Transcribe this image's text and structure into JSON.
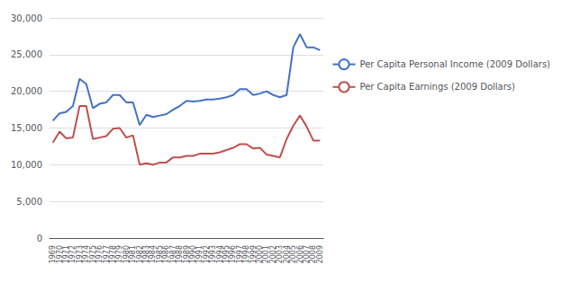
{
  "chart_data": {
    "type": "line",
    "categories": [
      "1969",
      "1970",
      "1971",
      "1972",
      "1973",
      "1974",
      "1975",
      "1976",
      "1977",
      "1978",
      "1979",
      "1980",
      "1981",
      "1982",
      "1983",
      "1984",
      "1985",
      "1986",
      "1987",
      "1988",
      "1989",
      "1990",
      "1991",
      "1992",
      "1993",
      "1994",
      "1995",
      "1996",
      "1997",
      "1998",
      "1999",
      "2000",
      "2001",
      "2002",
      "2003",
      "2004",
      "2005",
      "2006",
      "2007",
      "2008",
      "2009"
    ],
    "series": [
      {
        "name": "Per Capita Personal Income (2009 Dollars)",
        "color": "#4472c4",
        "values": [
          16000,
          17000,
          17200,
          18000,
          21700,
          21000,
          17700,
          18300,
          18500,
          19500,
          19500,
          18500,
          18500,
          15400,
          16800,
          16500,
          16700,
          16900,
          17500,
          18000,
          18700,
          18600,
          18700,
          18900,
          18900,
          19000,
          19200,
          19500,
          20300,
          20300,
          19500,
          19700,
          20000,
          19500,
          19200,
          19500,
          26000,
          27800,
          26000,
          26000,
          25600
        ]
      },
      {
        "name": "Per Capita Earnings (2009 Dollars)",
        "color": "#c0504d",
        "values": [
          13000,
          14500,
          13600,
          13700,
          18000,
          18000,
          13500,
          13700,
          13900,
          14900,
          15000,
          13700,
          14000,
          10000,
          10200,
          10000,
          10300,
          10300,
          11000,
          11000,
          11200,
          11200,
          11500,
          11500,
          11500,
          11700,
          12000,
          12300,
          12800,
          12800,
          12200,
          12300,
          11400,
          11200,
          11000,
          13500,
          15300,
          16700,
          15200,
          13300,
          13300
        ]
      }
    ],
    "ylim": [
      0,
      30000
    ],
    "yticks": [
      0,
      {
        "value": 5000,
        "label": "5,000"
      },
      {
        "value": 10000,
        "label": "10,000"
      },
      {
        "value": 15000,
        "label": "15,000"
      },
      {
        "value": 20000,
        "label": "20,000"
      },
      {
        "value": 25000,
        "label": "25,000"
      },
      {
        "value": 30000,
        "label": "30,000"
      }
    ],
    "grid": true,
    "legend": "right"
  }
}
